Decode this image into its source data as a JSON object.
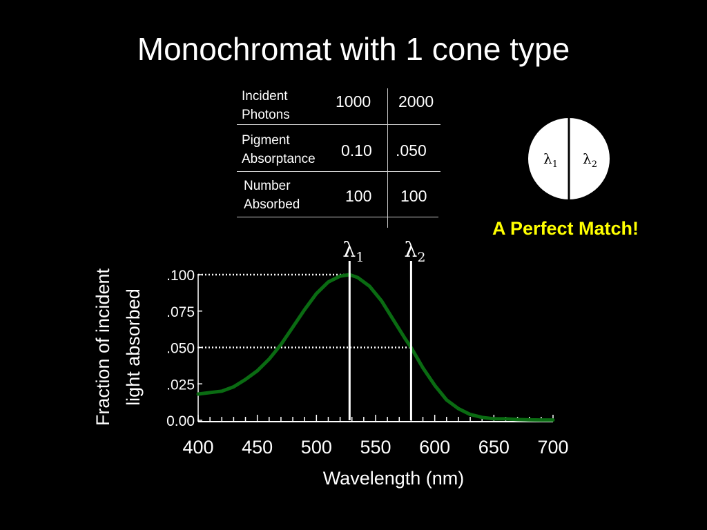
{
  "title": "Monochromat with 1 cone type",
  "table": {
    "rows": [
      {
        "label": "Incident\nPhotons",
        "v1": "1000",
        "v2": "2000"
      },
      {
        "label": "Pigment\nAbsorptance",
        "v1": "0.10",
        "v2": ".050"
      },
      {
        "label": "Number\nAbsorbed",
        "v1": "100",
        "v2": "100"
      }
    ]
  },
  "circle": {
    "left": "λ",
    "left_sub": "1",
    "right": "λ",
    "right_sub": "2"
  },
  "match_text": "A Perfect Match!",
  "colors": {
    "curve": "#0a6b12",
    "match": "#ffff00",
    "background": "#000000"
  },
  "chart_data": {
    "type": "line",
    "xlabel": "Wavelength (nm)",
    "ylabel_lines": [
      "Fraction of incident",
      "light absorbed"
    ],
    "xlim": [
      400,
      700
    ],
    "ylim": [
      0,
      0.1
    ],
    "x_ticks": [
      "400",
      "450",
      "500",
      "550",
      "600",
      "650",
      "700"
    ],
    "y_ticks": [
      "0.00",
      ".025",
      ".050",
      ".075",
      ".100"
    ],
    "series": [
      {
        "x": [
          400,
          410,
          420,
          430,
          440,
          450,
          460,
          470,
          480,
          490,
          500,
          510,
          520,
          528,
          535,
          545,
          555,
          565,
          575,
          580,
          590,
          600,
          610,
          620,
          630,
          640,
          650,
          660,
          670,
          680,
          690,
          700
        ],
        "values": [
          0.018,
          0.019,
          0.02,
          0.023,
          0.028,
          0.034,
          0.042,
          0.052,
          0.064,
          0.076,
          0.087,
          0.095,
          0.099,
          0.1,
          0.098,
          0.092,
          0.082,
          0.069,
          0.056,
          0.05,
          0.036,
          0.024,
          0.014,
          0.008,
          0.004,
          0.002,
          0.001,
          0.001,
          0.0005,
          0.0003,
          0.0002,
          0.0002
        ]
      }
    ],
    "markers": [
      {
        "label": "λ",
        "sub": "1",
        "x": 528,
        "y": 0.1
      },
      {
        "label": "λ",
        "sub": "2",
        "x": 580,
        "y": 0.05
      }
    ]
  }
}
